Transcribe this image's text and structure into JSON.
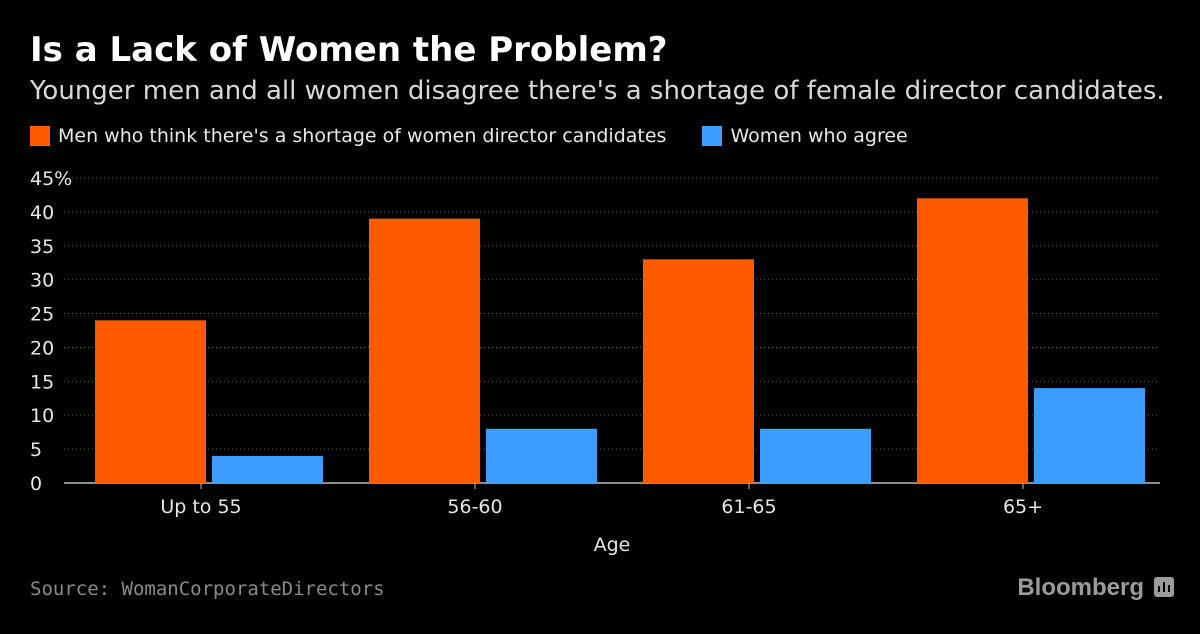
{
  "header": {
    "title": "Is a Lack of Women the Problem?",
    "subtitle": "Younger men and all women disagree there's a shortage of female director candidates."
  },
  "legend": [
    {
      "label": "Men who think there's a shortage of women director candidates",
      "color": "#ff5a00"
    },
    {
      "label": "Women who agree",
      "color": "#3d9cff"
    }
  ],
  "footer": {
    "source": "Source: WomanCorporateDirectors",
    "brand": "Bloomberg",
    "brand_icon": "bloomberg-chart-icon"
  },
  "chart_data": {
    "type": "bar",
    "title": "Is a Lack of Women the Problem?",
    "xlabel": "Age",
    "ylabel": "",
    "categories": [
      "Up to 55",
      "56-60",
      "61-65",
      "65+"
    ],
    "series": [
      {
        "name": "Men who think there's a shortage of women director candidates",
        "values": [
          24,
          39,
          33,
          42
        ],
        "color": "#ff5a00"
      },
      {
        "name": "Women who agree",
        "values": [
          4,
          8,
          8,
          14
        ],
        "color": "#3d9cff"
      }
    ],
    "ylim": [
      0,
      45
    ],
    "yticks": [
      "0",
      "5",
      "10",
      "15",
      "20",
      "25",
      "30",
      "35",
      "40",
      "45%"
    ],
    "grid": true,
    "legend_position": "top-left"
  }
}
